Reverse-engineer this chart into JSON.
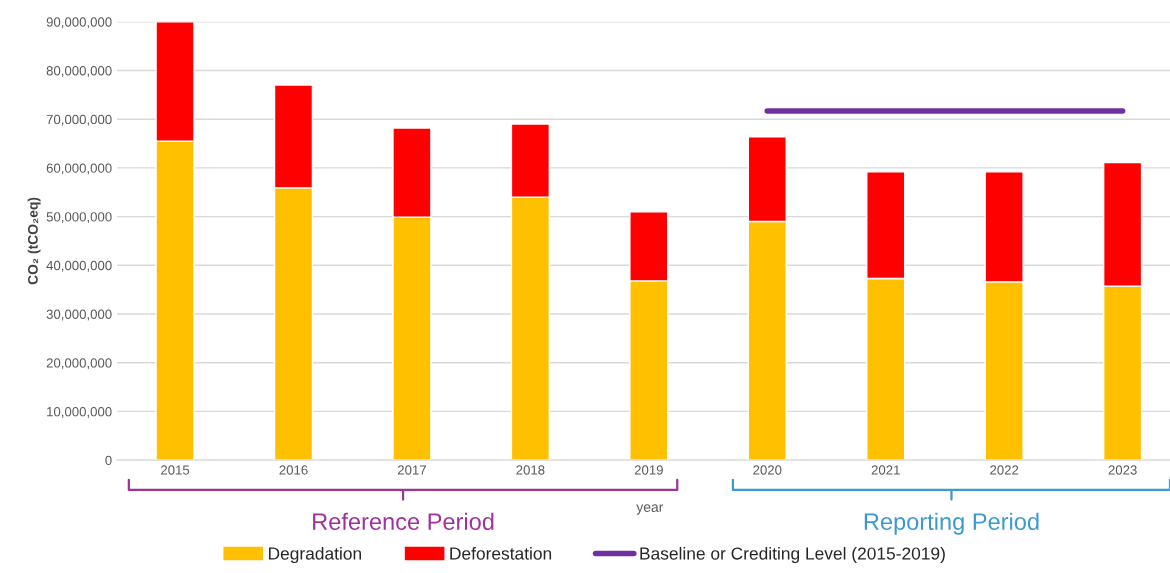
{
  "chart_data": {
    "type": "bar",
    "stacked": true,
    "xlabel": "year",
    "ylabel": "CO₂ (tCO₂eq)",
    "categories": [
      "2015",
      "2016",
      "2017",
      "2018",
      "2019",
      "2020",
      "2021",
      "2022",
      "2023"
    ],
    "series": [
      {
        "name": "Degradation",
        "color": "#ffc000",
        "values": [
          65500000,
          55900000,
          49900000,
          54000000,
          36800000,
          49000000,
          37300000,
          36600000,
          35700000
        ]
      },
      {
        "name": "Deforestation",
        "color": "#ff0000",
        "values": [
          24500000,
          21100000,
          18300000,
          15000000,
          14200000,
          17400000,
          21900000,
          22600000,
          25400000
        ]
      },
      {
        "name": "Baseline or Crediting Level (2015-2019)",
        "type": "line",
        "color": "#7030a0",
        "values": [
          null,
          null,
          null,
          null,
          null,
          71700000,
          71700000,
          71700000,
          71700000
        ]
      }
    ],
    "ylim": [
      0,
      90000000
    ],
    "yticks": [
      {
        "value": 0,
        "label": "0"
      },
      {
        "value": 10000000,
        "label": "10,000,000"
      },
      {
        "value": 20000000,
        "label": "20,000,000"
      },
      {
        "value": 30000000,
        "label": "30,000,000"
      },
      {
        "value": 40000000,
        "label": "40,000,000"
      },
      {
        "value": 50000000,
        "label": "50,000,000"
      },
      {
        "value": 60000000,
        "label": "60,000,000"
      },
      {
        "value": 70000000,
        "label": "70,000,000"
      },
      {
        "value": 80000000,
        "label": "80,000,000"
      },
      {
        "value": 90000000,
        "label": "90,000,000"
      }
    ],
    "grid": "y",
    "legend": "bottom",
    "annotations": [
      "Reference Period",
      "Reporting Period"
    ]
  }
}
